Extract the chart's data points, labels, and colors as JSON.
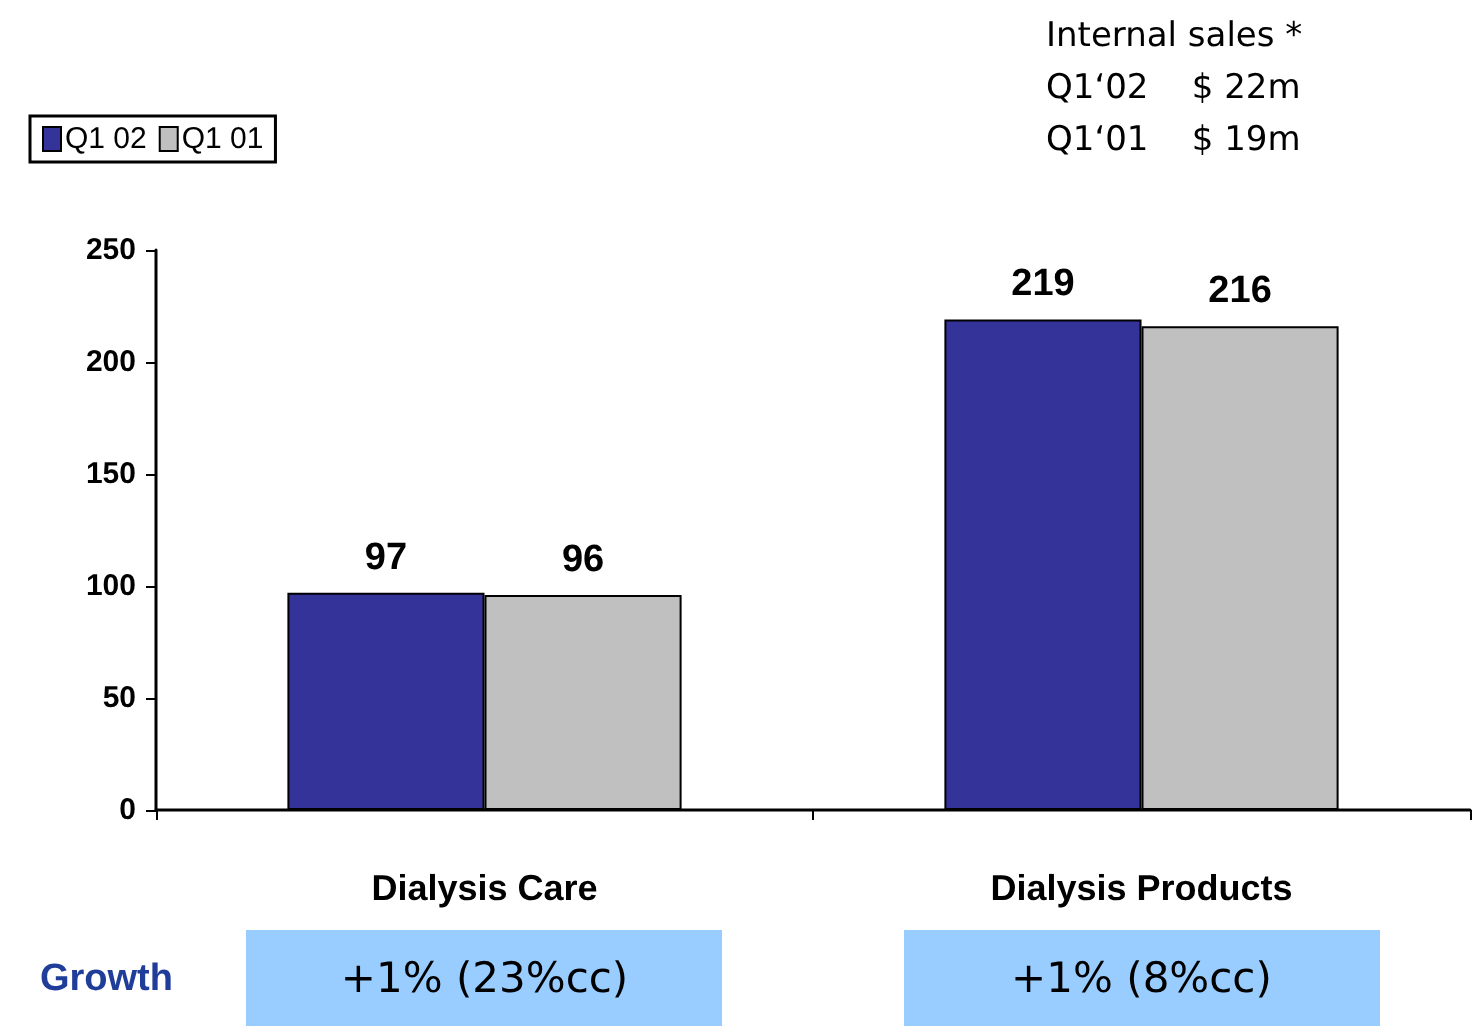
{
  "chart_data": {
    "type": "bar",
    "categories": [
      "Dialysis Care",
      "Dialysis Products"
    ],
    "series": [
      {
        "name": "Q1 02",
        "color": "#333399",
        "values": [
          97,
          219
        ]
      },
      {
        "name": "Q1 01",
        "color": "#c0c0c0",
        "values": [
          96,
          216
        ]
      }
    ],
    "ylim": [
      0,
      250
    ],
    "yticks": [
      0,
      50,
      100,
      150,
      200,
      250
    ],
    "data_labels": true,
    "grid": false,
    "legend": "top left",
    "annotations": [
      "Internal sales *",
      "Q1‘02    $ 22m",
      "Q1‘01    $ 19m",
      "Growth",
      "+1% (23%cc)",
      "+1% (8%cc)"
    ]
  }
}
